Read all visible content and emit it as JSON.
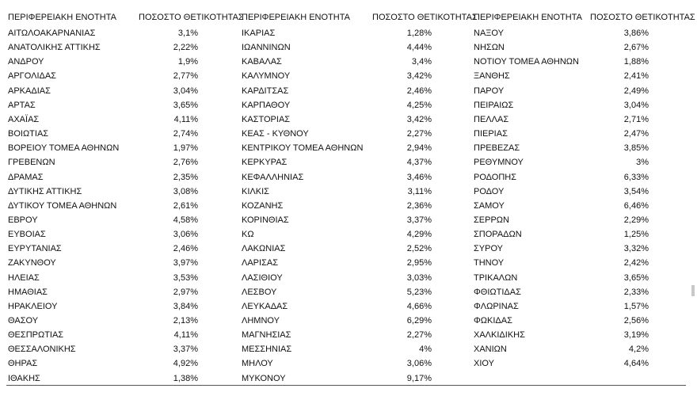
{
  "table": {
    "header": [
      "ΠΕΡΙΦΕΡΕΙΑΚΗ ΕΝΟΤΗΤΑ",
      "ΠΟΣΟΣΤΟ ΘΕΤΙΚΟΤΗΤΑΣ",
      "ΠΕΡΙΦΕΡΕΙΑΚΗ ΕΝΟΤΗΤΑ",
      "ΠΟΣΟΣΤΟ ΘΕΤΙΚΟΤΗΤΑΣ",
      "ΠΕΡΙΦΕΡΕΙΑΚΗ ΕΝΟΤΗΤΑ",
      "ΠΟΣΟΣΤΟ ΘΕΤΙΚΟΤΗΤΑΣ"
    ],
    "columns": [
      {
        "rows": [
          [
            "ΑΙΤΩΛΟΑΚΑΡΝΑΝΙΑΣ",
            "3,1%"
          ],
          [
            "ΑΝΑΤΟΛΙΚΗΣ ΑΤΤΙΚΗΣ",
            "2,22%"
          ],
          [
            "ΑΝΔΡΟΥ",
            "1,9%"
          ],
          [
            "ΑΡΓΟΛΙΔΑΣ",
            "2,77%"
          ],
          [
            "ΑΡΚΑΔΙΑΣ",
            "3,04%"
          ],
          [
            "ΑΡΤΑΣ",
            "3,65%"
          ],
          [
            "ΑΧΑΪΑΣ",
            "4,11%"
          ],
          [
            "ΒΟΙΩΤΙΑΣ",
            "2,74%"
          ],
          [
            "ΒΟΡΕΙΟΥ ΤΟΜΕΑ ΑΘΗΝΩΝ",
            "1,97%"
          ],
          [
            "ΓΡΕΒΕΝΩΝ",
            "2,76%"
          ],
          [
            "ΔΡΑΜΑΣ",
            "2,35%"
          ],
          [
            "ΔΥΤΙΚΗΣ ΑΤΤΙΚΗΣ",
            "3,08%"
          ],
          [
            "ΔΥΤΙΚΟΥ ΤΟΜΕΑ ΑΘΗΝΩΝ",
            "2,61%"
          ],
          [
            "ΕΒΡΟΥ",
            "4,58%"
          ],
          [
            "ΕΥΒΟΙΑΣ",
            "3,06%"
          ],
          [
            "ΕΥΡΥΤΑΝΙΑΣ",
            "2,46%"
          ],
          [
            "ΖΑΚΥΝΘΟΥ",
            "3,97%"
          ],
          [
            "ΗΛΕΙΑΣ",
            "3,53%"
          ],
          [
            "ΗΜΑΘΙΑΣ",
            "2,97%"
          ],
          [
            "ΗΡΑΚΛΕΙΟΥ",
            "3,84%"
          ],
          [
            "ΘΑΣΟΥ",
            "2,13%"
          ],
          [
            "ΘΕΣΠΡΩΤΙΑΣ",
            "4,11%"
          ],
          [
            "ΘΕΣΣΑΛΟΝΙΚΗΣ",
            "3,37%"
          ],
          [
            "ΘΗΡΑΣ",
            "4,92%"
          ],
          [
            "ΙΘΑΚΗΣ",
            "1,38%"
          ]
        ]
      },
      {
        "rows": [
          [
            "ΙΚΑΡΙΑΣ",
            "1,28%"
          ],
          [
            "ΙΩΑΝΝΙΝΩΝ",
            "4,44%"
          ],
          [
            "ΚΑΒΑΛΑΣ",
            "3,4%"
          ],
          [
            "ΚΑΛΥΜΝΟΥ",
            "3,42%"
          ],
          [
            "ΚΑΡΔΙΤΣΑΣ",
            "2,46%"
          ],
          [
            "ΚΑΡΠΑΘΟΥ",
            "4,25%"
          ],
          [
            "ΚΑΣΤΟΡΙΑΣ",
            "3,42%"
          ],
          [
            "ΚΕΑΣ - ΚΥΘΝΟΥ",
            "2,27%"
          ],
          [
            "ΚΕΝΤΡΙΚΟΥ ΤΟΜΕΑ ΑΘΗΝΩΝ",
            "2,94%"
          ],
          [
            "ΚΕΡΚΥΡΑΣ",
            "4,37%"
          ],
          [
            "ΚΕΦΑΛΛΗΝΙΑΣ",
            "3,46%"
          ],
          [
            "ΚΙΛΚΙΣ",
            "3,11%"
          ],
          [
            "ΚΟΖΑΝΗΣ",
            "2,36%"
          ],
          [
            "ΚΟΡΙΝΘΙΑΣ",
            "3,37%"
          ],
          [
            "ΚΩ",
            "4,29%"
          ],
          [
            "ΛΑΚΩΝΙΑΣ",
            "2,52%"
          ],
          [
            "ΛΑΡΙΣΑΣ",
            "2,95%"
          ],
          [
            "ΛΑΣΙΘΙΟΥ",
            "3,03%"
          ],
          [
            "ΛΕΣΒΟΥ",
            "5,23%"
          ],
          [
            "ΛΕΥΚΑΔΑΣ",
            "4,66%"
          ],
          [
            "ΛΗΜΝΟΥ",
            "6,29%"
          ],
          [
            "ΜΑΓΝΗΣΙΑΣ",
            "2,27%"
          ],
          [
            "ΜΕΣΣΗΝΙΑΣ",
            "4%"
          ],
          [
            "ΜΗΛΟΥ",
            "3,06%"
          ],
          [
            "ΜΥΚΟΝΟΥ",
            "9,17%"
          ]
        ]
      },
      {
        "rows": [
          [
            "ΝΑΞΟΥ",
            "3,86%"
          ],
          [
            "ΝΗΣΩΝ",
            "2,67%"
          ],
          [
            "ΝΟΤΙΟΥ ΤΟΜΕΑ ΑΘΗΝΩΝ",
            "1,88%"
          ],
          [
            "ΞΑΝΘΗΣ",
            "2,41%"
          ],
          [
            "ΠΑΡΟΥ",
            "2,49%"
          ],
          [
            "ΠΕΙΡΑΙΩΣ",
            "3,04%"
          ],
          [
            "ΠΕΛΛΑΣ",
            "2,71%"
          ],
          [
            "ΠΙΕΡΙΑΣ",
            "2,47%"
          ],
          [
            "ΠΡΕΒΕΖΑΣ",
            "3,85%"
          ],
          [
            "ΡΕΘΥΜΝΟΥ",
            "3%"
          ],
          [
            "ΡΟΔΟΠΗΣ",
            "6,33%"
          ],
          [
            "ΡΟΔΟΥ",
            "3,54%"
          ],
          [
            "ΣΑΜΟΥ",
            "6,46%"
          ],
          [
            "ΣΕΡΡΩΝ",
            "2,29%"
          ],
          [
            "ΣΠΟΡΑΔΩΝ",
            "1,25%"
          ],
          [
            "ΣΥΡΟΥ",
            "3,32%"
          ],
          [
            "ΤΗΝΟΥ",
            "2,42%"
          ],
          [
            "ΤΡΙΚΑΛΩΝ",
            "3,65%"
          ],
          [
            "ΦΘΙΩΤΙΔΑΣ",
            "2,33%"
          ],
          [
            "ΦΛΩΡΙΝΑΣ",
            "1,57%"
          ],
          [
            "ΦΩΚΙΔΑΣ",
            "2,56%"
          ],
          [
            "ΧΑΛΚΙΔΙΚΗΣ",
            "3,19%"
          ],
          [
            "ΧΑΝΙΩΝ",
            "4,2%"
          ],
          [
            "ΧΙΟΥ",
            "4,64%"
          ]
        ]
      }
    ]
  }
}
